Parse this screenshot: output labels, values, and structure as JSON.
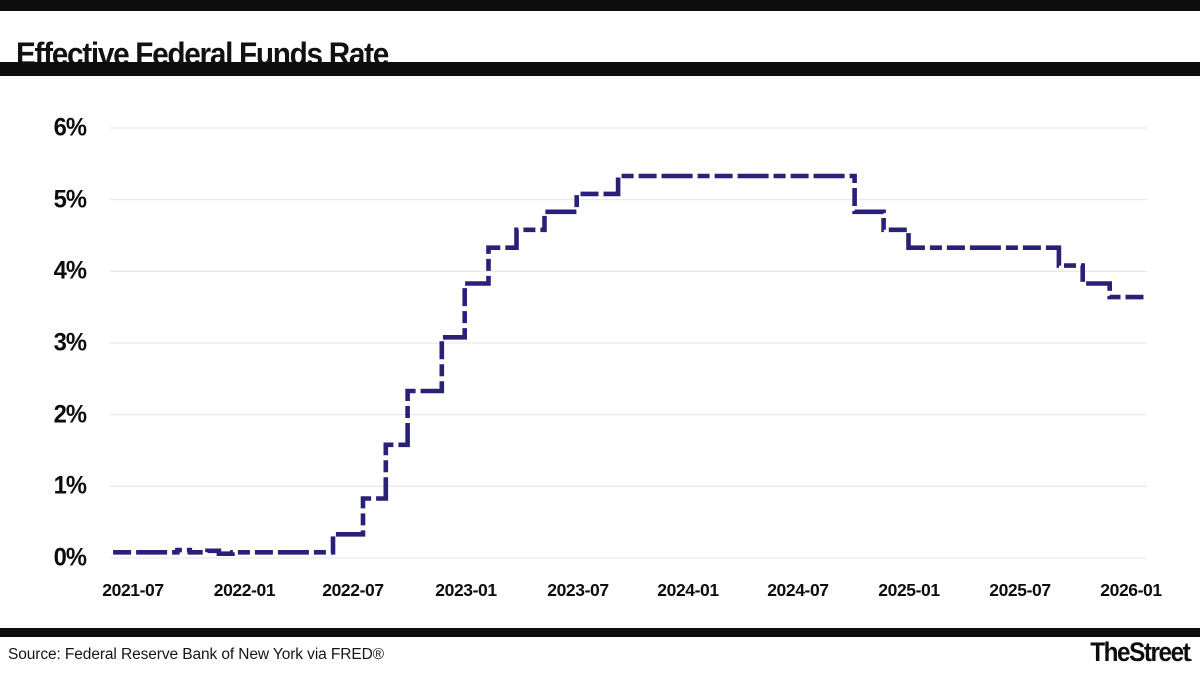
{
  "header": {
    "title": "Effective Federal Funds Rate"
  },
  "footer": {
    "source": "Source: Federal Reserve Bank of New York via FRED®",
    "brand": "TheStreet",
    "brand_dot": "."
  },
  "colors": {
    "line": "#292077",
    "grid": "#e9e9e9",
    "bars": "#0d0d0d",
    "background": "#ffffff",
    "text": "#0d0d0d"
  },
  "chart_data": {
    "type": "line",
    "subtype": "step",
    "line_style": "dashed",
    "title": "Effective Federal Funds Rate",
    "xlabel": "",
    "ylabel": "",
    "grid": "horizontal-only",
    "legend": "none",
    "x_range": [
      "2021-05",
      "2026-02"
    ],
    "ylim": [
      0,
      6
    ],
    "y_unit": "%",
    "y_axis": {
      "ticks": [
        {
          "label": "0%",
          "value": 0
        },
        {
          "label": "1%",
          "value": 1
        },
        {
          "label": "2%",
          "value": 2
        },
        {
          "label": "3%",
          "value": 3
        },
        {
          "label": "4%",
          "value": 4
        },
        {
          "label": "5%",
          "value": 5
        },
        {
          "label": "6%",
          "value": 6
        }
      ]
    },
    "x_axis": {
      "ticks": [
        {
          "label": "2021-07",
          "f": 0.0222
        },
        {
          "label": "2022-01",
          "f": 0.1297
        },
        {
          "label": "2022-07",
          "f": 0.2343
        },
        {
          "label": "2023-01",
          "f": 0.3433
        },
        {
          "label": "2023-07",
          "f": 0.4513
        },
        {
          "label": "2024-01",
          "f": 0.5574
        },
        {
          "label": "2024-07",
          "f": 0.6634
        },
        {
          "label": "2025-01",
          "f": 0.7705
        },
        {
          "label": "2025-07",
          "f": 0.8775
        },
        {
          "label": "2026-01",
          "f": 0.9846
        }
      ]
    },
    "series": [
      {
        "name": "Effective Federal Funds Rate",
        "end_f": 1.0,
        "points": [
          {
            "f": 0.003,
            "v": 0.08,
            "date": "2021-05"
          },
          {
            "f": 0.065,
            "v": 0.11
          },
          {
            "f": 0.077,
            "v": 0.08
          },
          {
            "f": 0.094,
            "v": 0.1
          },
          {
            "f": 0.105,
            "v": 0.06
          },
          {
            "f": 0.118,
            "v": 0.08
          },
          {
            "f": 0.215,
            "v": 0.33,
            "date": "2022-03-17"
          },
          {
            "f": 0.244,
            "v": 0.83,
            "date": "2022-05-05"
          },
          {
            "f": 0.266,
            "v": 1.58,
            "date": "2022-06-16"
          },
          {
            "f": 0.287,
            "v": 2.33,
            "date": "2022-07-28"
          },
          {
            "f": 0.32,
            "v": 3.08,
            "date": "2022-09-22"
          },
          {
            "f": 0.342,
            "v": 3.83,
            "date": "2022-11-03"
          },
          {
            "f": 0.365,
            "v": 4.33,
            "date": "2022-12-15"
          },
          {
            "f": 0.392,
            "v": 4.58,
            "date": "2023-02-02"
          },
          {
            "f": 0.419,
            "v": 4.83,
            "date": "2023-03-23"
          },
          {
            "f": 0.45,
            "v": 5.08,
            "date": "2023-05-04"
          },
          {
            "f": 0.49,
            "v": 5.33,
            "date": "2023-07-27"
          },
          {
            "f": 0.718,
            "v": 4.83,
            "date": "2024-09-19"
          },
          {
            "f": 0.746,
            "v": 4.58,
            "date": "2024-11-08"
          },
          {
            "f": 0.77,
            "v": 4.33,
            "date": "2024-12-19"
          },
          {
            "f": 0.915,
            "v": 4.08,
            "date": "2025-09-18"
          },
          {
            "f": 0.938,
            "v": 3.83,
            "date": "2025-10-30"
          },
          {
            "f": 0.964,
            "v": 3.64,
            "date": "2025-12-11"
          }
        ]
      }
    ]
  }
}
